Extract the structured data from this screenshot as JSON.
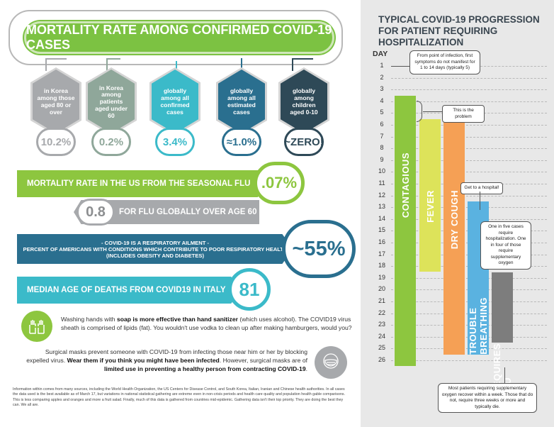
{
  "title": "MORTALITY RATE AMONG CONFIRMED COVID-19 CASES",
  "shields": [
    {
      "text": "in Korea among those aged 80 or over",
      "value": "10.2%",
      "color": "#a7a9ac"
    },
    {
      "text": "in Korea among patients aged under 60",
      "value": "0.2%",
      "color": "#8fa79a"
    },
    {
      "text": "globally among all confirmed cases",
      "value": "3.4%",
      "color": "#3bbac9"
    },
    {
      "text": "globally among all estimated cases",
      "value": "≈1.0%",
      "color": "#2a6f8f"
    },
    {
      "text": "globally among children aged 0-10",
      "value": "~ZERO!",
      "color": "#2e4957"
    }
  ],
  "flu_us": {
    "label": "MORTALITY RATE IN THE US FROM THE SEASONAL FLU",
    "value": ".07%"
  },
  "flu_global": {
    "label": "FOR FLU GLOBALLY OVER AGE 60",
    "value": "0.8"
  },
  "respiratory": {
    "line1": "- COVID-19 IS A RESPIRATORY AILMENT -",
    "line2": "PERCENT OF AMERICANS WITH CONDITIONS WHICH CONTRIBUTE TO POOR RESPIRATORY HEALTH",
    "line3": "(INCLUDES OBESITY AND DIABETES)",
    "value": "~55%"
  },
  "median_age": {
    "label": "MEDIAN AGE OF DEATHS FROM COVID19 IN ITALY",
    "value": "81"
  },
  "soap": {
    "p1": "Washing hands with ",
    "b1": "soap is more effective than hand sanitizer",
    "p2": " (which uses alcohol). The COVID19 virus sheath is comprised of lipids (fat). You wouldn't use vodka to clean up after making hamburgers, would you?"
  },
  "masks": {
    "p1": "Surgical masks prevent someone with COVID-19 from infecting those near him or her by blocking expelled virus. ",
    "b1": "Wear them if you think you might have been infected",
    "p2": ". However, surgical masks are of ",
    "b2": "limited use in preventing a healthy person from contracting COVID-19",
    "p3": "."
  },
  "footer": "Information within comes from many sources, including the World Health Organization, the US Centers for Disease Control, and South Korea, Italian, Iranian and Chinese health authorities. In all cases the data used is the best available as of March 17, but variations in national statistical gathering are extreme even in non-crisis periods and health care quality and population health gable comparisons. This is less comparing apples and oranges and more a fruit salad. Finally, much of this data is gathered from countries mid-epidemic. Gathering data isn't their top priority. They are doing the best they can. We all are.",
  "right": {
    "title": "TYPICAL COVID-19 PROGRESSION FOR PATIENT REQUIRING HOSPITALIZATION",
    "day_label": "DAY",
    "days": [
      "1",
      "2",
      "3",
      "4",
      "5",
      "6",
      "7",
      "8",
      "9",
      "10",
      "11",
      "12",
      "13",
      "14",
      "15",
      "16",
      "17",
      "18",
      "19",
      "20",
      "21",
      "22",
      "23",
      "24",
      "25",
      "26"
    ],
    "bars": [
      {
        "label": "CONTAGIOUS",
        "color": "#8dc63f",
        "start": 3.5,
        "end": 26.5
      },
      {
        "label": "FEVER",
        "color": "#dde35a",
        "start": 5.5,
        "end": 18.5
      },
      {
        "label": "DRY COUGH",
        "color": "#f5a055",
        "start": 5.5,
        "end": 25.5
      },
      {
        "label": "TROUBLE BREATHING",
        "color": "#5ab2e0",
        "start": 12.5,
        "end": 25.5
      },
      {
        "label": "REQUIRES ICU",
        "color": "#7d7d7d",
        "start": 18.5,
        "end": 24.5
      }
    ],
    "notes": {
      "n1": "From point of infection, first symptoms do not manifest for 1 to 14 days (typically 5)",
      "n2": "This is the problem",
      "n3": "Get to a hospital!",
      "n4": "One in five cases require hospitalization. One in four of those require supplementary oxygen",
      "n5": "Most patients requiring supplementary oxygen recover within a week. Those that do not, require three weeks or more and typically die."
    }
  }
}
